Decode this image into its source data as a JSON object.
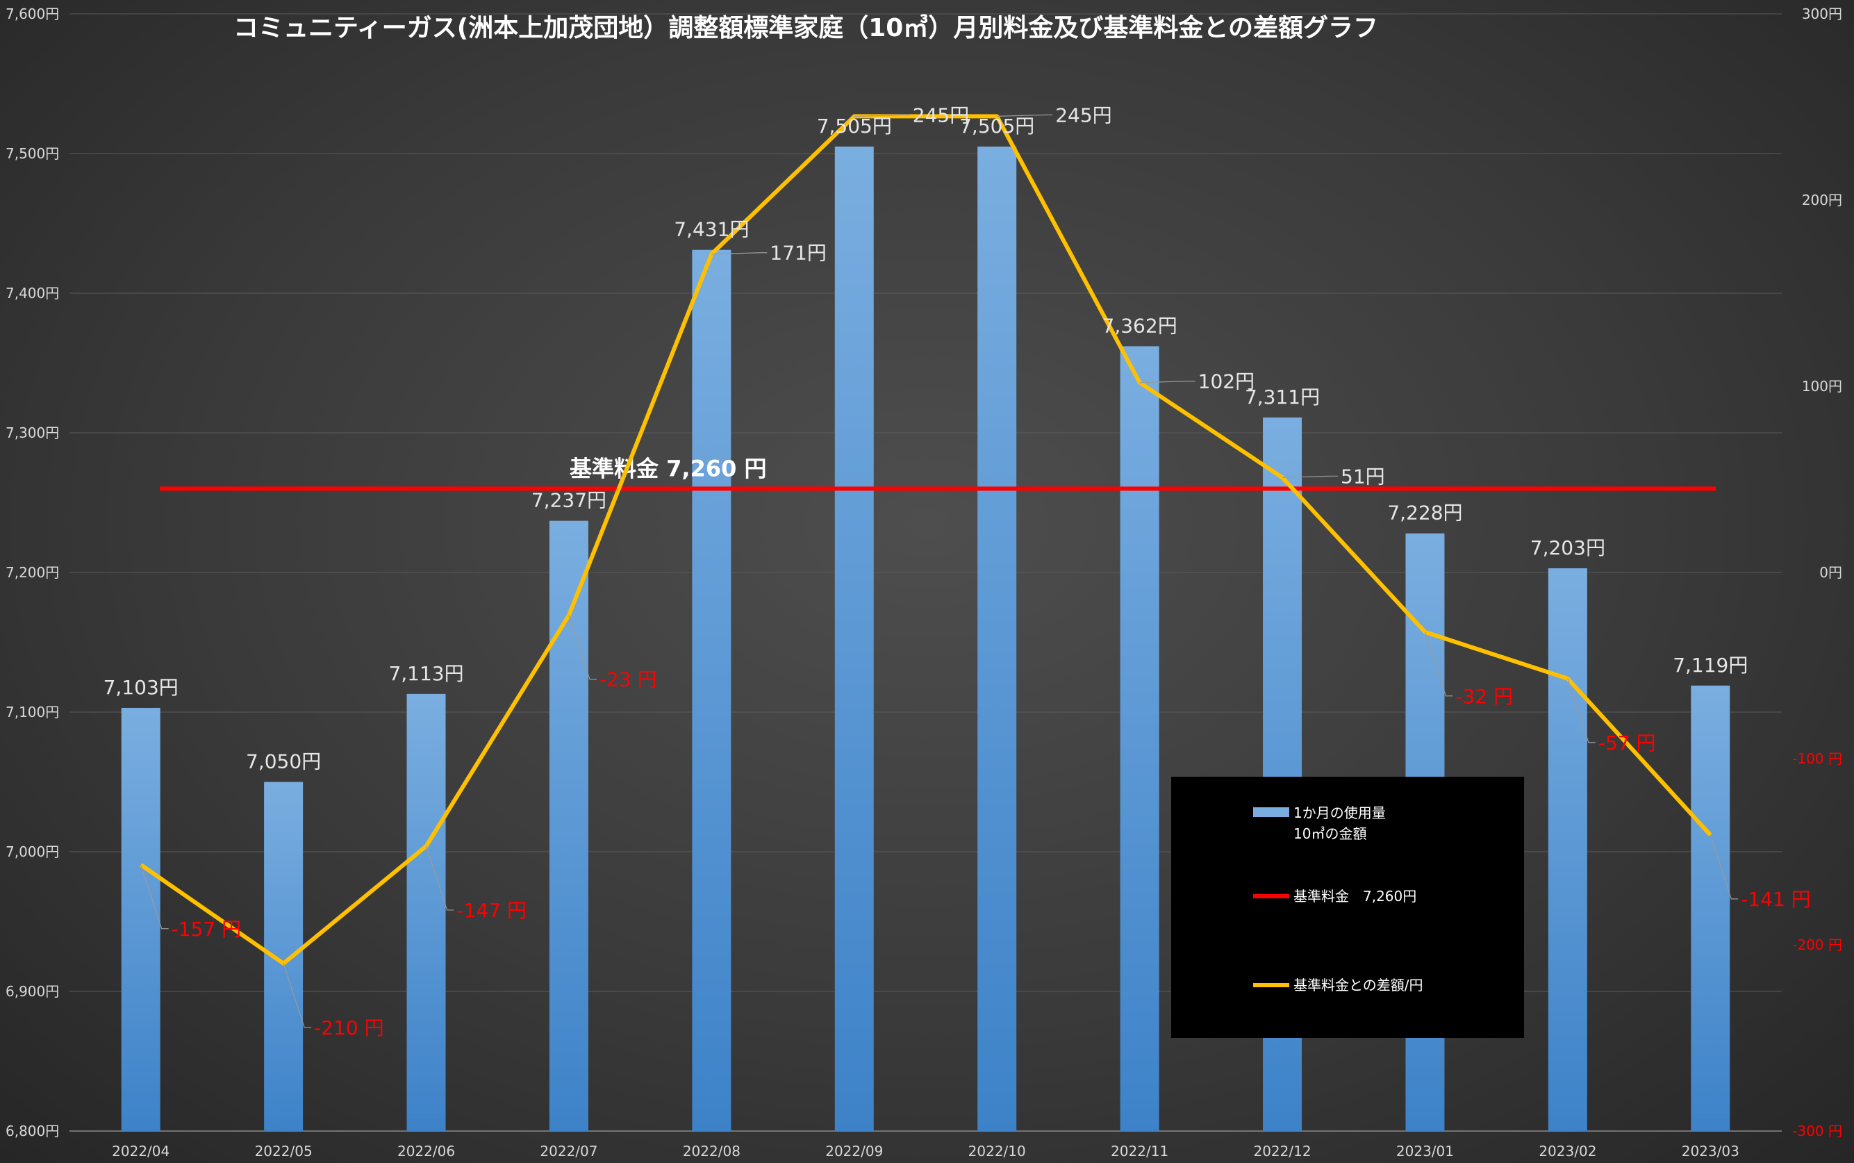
{
  "colors": {
    "bar_top": "#7aaee0",
    "bar_bottom": "#3d82c8",
    "diff_line": "#ffc000",
    "ref_line": "#ff0000",
    "axis_text": "#d9d9d9",
    "negative_text": "#ff0000",
    "legend_bg": "#000000"
  },
  "chart_data": {
    "type": "bar",
    "title": "コミュニティーガス(洲本上加茂団地）調整額標準家庭（10㎥）月別料金及び基準料金との差額グラフ",
    "categories": [
      "2022/04",
      "2022/05",
      "2022/06",
      "2022/07",
      "2022/08",
      "2022/09",
      "2022/10",
      "2022/11",
      "2022/12",
      "2023/01",
      "2023/02",
      "2023/03"
    ],
    "series": [
      {
        "name": "1か月の使用量10㎥の金額",
        "type": "bar",
        "axis": "left",
        "values": [
          7103,
          7050,
          7113,
          7237,
          7431,
          7505,
          7505,
          7362,
          7311,
          7228,
          7203,
          7119
        ],
        "labels": [
          "7,103円",
          "7,050円",
          "7,113円",
          "7,237円",
          "7,431円",
          "7,505円",
          "7,505円",
          "7,362円",
          "7,311円",
          "7,228円",
          "7,203円",
          "7,119円"
        ]
      },
      {
        "name": "基準料金との差額/円",
        "type": "line",
        "axis": "right",
        "values": [
          -157,
          -210,
          -147,
          -23,
          171,
          245,
          245,
          102,
          51,
          -32,
          -57,
          -141
        ],
        "labels": [
          "-157 円",
          "-210 円",
          "-147 円",
          "-23 円",
          "171円",
          "245円",
          "245円",
          "102円",
          "51円",
          "-32 円",
          "-57 円",
          "-141 円"
        ]
      }
    ],
    "reference_line": {
      "name": "基準料金 7,260円",
      "value": 7260,
      "label": "基準料金  7,260  円"
    },
    "left_axis": {
      "ylim": [
        6800,
        7600
      ],
      "ticks": [
        "6,800円",
        "6,900円",
        "7,000円",
        "7,100円",
        "7,200円",
        "7,300円",
        "7,400円",
        "7,500円",
        "7,600円"
      ]
    },
    "right_axis": {
      "ylim": [
        -300,
        300
      ],
      "ticks": [
        "-300 円",
        "-200 円",
        "-100 円",
        "0円",
        "100円",
        "200円",
        "300円"
      ]
    },
    "grid": true,
    "legend": {
      "position": "bottom-right",
      "items": [
        {
          "kind": "bar",
          "lines": [
            "1か月の使用量",
            "10㎥の金額"
          ]
        },
        {
          "kind": "ref",
          "lines": [
            "基準料金　7,260円"
          ]
        },
        {
          "kind": "line",
          "lines": [
            "基準料金との差額/円"
          ]
        }
      ]
    }
  }
}
